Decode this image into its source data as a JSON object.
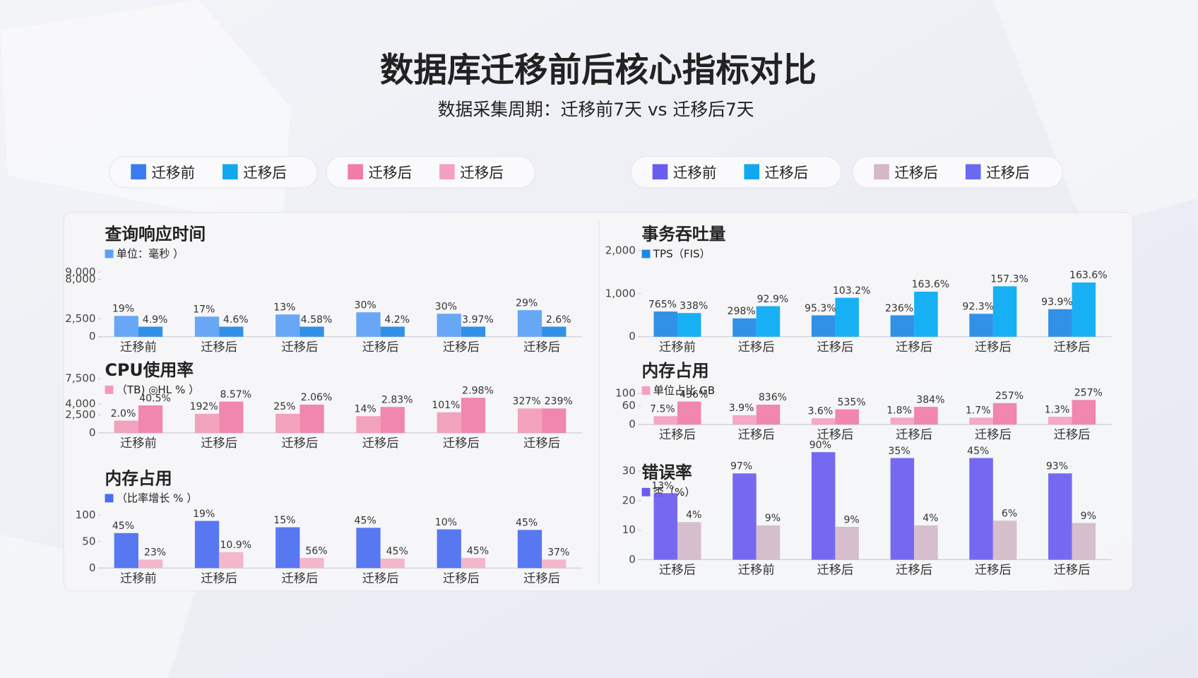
{
  "title": "数据库迁移前后核心指标对比",
  "subtitle": "数据采集周期：迁移前7天 vs 迁移后7天",
  "legends": [
    {
      "items": [
        {
          "label": "迁移前",
          "color": "#3b7bf0"
        },
        {
          "label": "迁移后",
          "color": "#12a8f0"
        }
      ]
    },
    {
      "items": [
        {
          "label": "迁移后",
          "color": "#f07ca8"
        },
        {
          "label": "迁移后",
          "color": "#f4a0c4"
        }
      ]
    },
    {
      "items": [
        {
          "label": "迁移前",
          "color": "#6a5cf0"
        },
        {
          "label": "迁移后",
          "color": "#12a8f0"
        }
      ]
    },
    {
      "items": [
        {
          "label": "迁移后",
          "color": "#d4b8c8"
        },
        {
          "label": "迁移后",
          "color": "#6a6af0"
        }
      ]
    }
  ],
  "chart_data": [
    {
      "type": "bar",
      "title": "查询响应时间",
      "subtitle": "单位：毫秒 ）",
      "categories": [
        "迁移前",
        "迁移后",
        "迁移后",
        "迁移后",
        "迁移后",
        "迁移后"
      ],
      "ylim": [
        0,
        15000
      ],
      "yticks": [
        0,
        {
          "value": 2500,
          "label": "2,500"
        },
        {
          "value": 8000,
          "label": "8,000"
        },
        {
          "value": 9000,
          "label": "9,000"
        }
      ],
      "series": [
        {
          "color": "#5aa0f5",
          "values": [
            2900,
            2800,
            3100,
            3400,
            3200,
            3700
          ],
          "notes": [
            "19%",
            "17%",
            "13%",
            "30%",
            "30%",
            "29%"
          ]
        },
        {
          "color": "#1e88e5",
          "values": [
            1400,
            1400,
            1400,
            1400,
            1400,
            1400
          ],
          "notes": [
            "4.9%",
            "4.6%",
            "4.58%",
            "4.2%",
            "3.97%",
            "2.6%"
          ]
        }
      ]
    },
    {
      "type": "bar",
      "title": "事务吞吐量",
      "subtitle": "TPS（FIS）",
      "categories": [
        "迁移前",
        "迁移后",
        "迁移后",
        "迁移后",
        "迁移后",
        "迁移后"
      ],
      "ylim": [
        0,
        2500
      ],
      "yticks": [
        0,
        {
          "value": 1000,
          "label": "1,000"
        },
        {
          "value": 2000,
          "label": "2,000"
        }
      ],
      "series": [
        {
          "color": "#1e88e5",
          "values": [
            585,
            426,
            496,
            496,
            532,
            638
          ],
          "notes": [
            "765%",
            "298%",
            "95.3%",
            "236%",
            "92.3%",
            "93.9%"
          ]
        },
        {
          "color": "#03a9f4",
          "values": [
            550,
            709,
            904,
            1046,
            1170,
            1259
          ],
          "notes": [
            "338%",
            "92.9%",
            "103.2%",
            "163.6%",
            "157.3%",
            "163.6%"
          ]
        }
      ]
    },
    {
      "type": "bar",
      "title": "CPU使用率",
      "subtitle": "（TB) ◎HL % ）",
      "categories": [
        "迁移前",
        "迁移后",
        "迁移后",
        "迁移后",
        "迁移后",
        "迁移后"
      ],
      "ylim": [
        0,
        7500
      ],
      "yticks": [
        0,
        {
          "value": 2500,
          "label": "2,500"
        },
        {
          "value": 4000,
          "label": "4,000"
        },
        {
          "value": 7500,
          "label": "7,500"
        }
      ],
      "series": [
        {
          "color": "#f29ab8",
          "values": [
            1700,
            2640,
            2640,
            2320,
            2850,
            3380
          ],
          "notes": [
            "2.0%",
            "192%",
            "25%",
            "14%",
            "101%",
            "327%"
          ]
        },
        {
          "color": "#f07ca8",
          "values": [
            3800,
            4330,
            3910,
            3590,
            4860,
            3380
          ],
          "notes": [
            "40.5%",
            "8.57%",
            "2.06%",
            "2.83%",
            "2.98%",
            "239%"
          ]
        }
      ]
    },
    {
      "type": "bar",
      "title": "内存占用",
      "subtitle": "单位占比 GB",
      "categories": [
        "迁移后",
        "迁移后",
        "迁移后",
        "迁移后",
        "迁移后",
        "迁移后"
      ],
      "ylim": [
        0,
        160
      ],
      "yticks": [
        0,
        60,
        100
      ],
      "series": [
        {
          "color": "#f4a0c0",
          "values": [
            27,
            30,
            20,
            22,
            22,
            25
          ],
          "notes": [
            "7.5%",
            "3.9%",
            "3.6%",
            "1.8%",
            "1.7%",
            "1.3%"
          ]
        },
        {
          "color": "#f07ca8",
          "values": [
            74,
            64,
            49,
            57,
            69,
            79
          ],
          "notes": [
            "436%",
            "836%",
            "535%",
            "384%",
            "257%",
            "257%"
          ]
        }
      ]
    },
    {
      "type": "bar",
      "title": "内存占用",
      "subtitle": "（比率增长 % ）",
      "categories": [
        "迁移前",
        "迁移后",
        "迁移后",
        "迁移后",
        "迁移后",
        "迁移后"
      ],
      "ylim": [
        0,
        160
      ],
      "yticks": [
        0,
        50,
        100
      ],
      "series": [
        {
          "color": "#4a6cf0",
          "values": [
            66,
            89,
            77,
            76,
            73,
            72
          ],
          "notes": [
            "45%",
            "19%",
            "15%",
            "45%",
            "10%",
            "45%"
          ]
        },
        {
          "color": "#f4b0c8",
          "values": [
            16,
            30,
            19,
            18,
            19,
            16
          ],
          "notes": [
            "23%",
            "10.9%",
            "56%",
            "45%",
            "45%",
            "37%"
          ]
        }
      ]
    },
    {
      "type": "bar",
      "title": "错误率",
      "subtitle": "否（%）",
      "categories": [
        "迁移后",
        "迁移前",
        "迁移后",
        "迁移后",
        "迁移后",
        "迁移后"
      ],
      "ylim": [
        0,
        38
      ],
      "yticks": [
        0,
        10,
        20,
        30
      ],
      "series": [
        {
          "color": "#6a5cf0",
          "values": [
            22.5,
            29.2,
            36.4,
            34.4,
            34.4,
            29.2
          ],
          "notes": [
            "13%",
            "97%",
            "90%",
            "35%",
            "45%",
            "93%"
          ]
        },
        {
          "color": "#d4b8c8",
          "values": [
            12.7,
            11.6,
            11.1,
            11.6,
            13.2,
            12.4
          ],
          "notes": [
            "4%",
            "9%",
            "9%",
            "4%",
            "6%",
            "9%"
          ]
        }
      ]
    }
  ]
}
